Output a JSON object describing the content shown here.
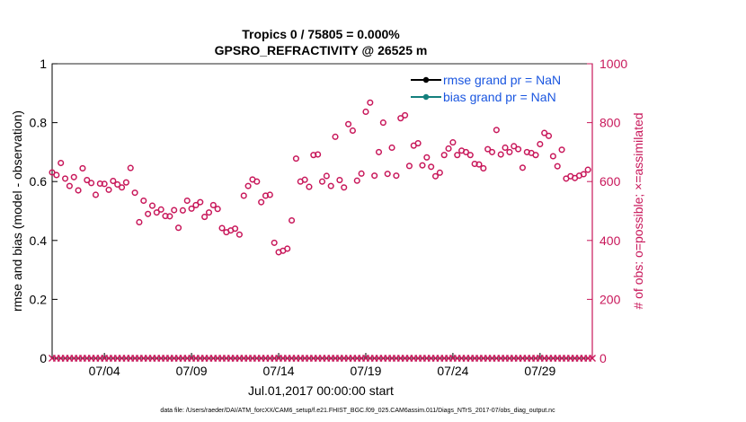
{
  "colors": {
    "left_axis": "#000000",
    "right_axis": "#c8175a",
    "rmse": "#000000",
    "bias": "#14807d",
    "legend_text": "#1a56e0"
  },
  "chart_data": {
    "type": "scatter",
    "title": [
      "Tropics 0 / 75805 = 0.000%",
      "GPSRO_REFRACTIVITY @ 26525 m"
    ],
    "xlabel": "Jul.01,2017 00:00:00 start",
    "ylabel_left": "rmse and bias (model - observation)",
    "ylabel_right": "# of obs: o=possible; ×=assimilated",
    "ylim_left": [
      0,
      1
    ],
    "ylim_right": [
      0,
      1000
    ],
    "yticks_left": [
      "0",
      "0.2",
      "0.4",
      "0.6",
      "0.8",
      "1"
    ],
    "yticks_right": [
      "0",
      "200",
      "400",
      "600",
      "800",
      "1000"
    ],
    "xlim_days": [
      0,
      31
    ],
    "xticks": [
      {
        "day": 3,
        "label": "07/04"
      },
      {
        "day": 8,
        "label": "07/09"
      },
      {
        "day": 13,
        "label": "07/14"
      },
      {
        "day": 18,
        "label": "07/19"
      },
      {
        "day": 23,
        "label": "07/24"
      },
      {
        "day": 28,
        "label": "07/29"
      }
    ],
    "legend": [
      {
        "label": "rmse grand pr = NaN",
        "series": "rmse"
      },
      {
        "label": "bias grand pr = NaN",
        "series": "bias"
      }
    ],
    "possible_obs_step_days": 0.25,
    "possible_obs": [
      631,
      622,
      663,
      610,
      585,
      615,
      570,
      645,
      605,
      595,
      555,
      593,
      592,
      572,
      602,
      590,
      580,
      597,
      646,
      562,
      462,
      535,
      490,
      518,
      495,
      505,
      483,
      482,
      503,
      443,
      502,
      535,
      508,
      520,
      530,
      480,
      495,
      520,
      507,
      442,
      428,
      434,
      440,
      420,
      552,
      585,
      607,
      600,
      530,
      552,
      555,
      392,
      360,
      365,
      372,
      468,
      678,
      600,
      606,
      582,
      690,
      692,
      600,
      619,
      585,
      752,
      605,
      580,
      795,
      773,
      603,
      627,
      837,
      868,
      620,
      700,
      800,
      626,
      715,
      620,
      815,
      825,
      653,
      722,
      730,
      655,
      682,
      650,
      618,
      630,
      690,
      712,
      733,
      690,
      705,
      700,
      690,
      660,
      658,
      645,
      710,
      700,
      775,
      692,
      715,
      700,
      720,
      710,
      647,
      700,
      697,
      690,
      727,
      765,
      755,
      686,
      652,
      708,
      610,
      618,
      612,
      620,
      625,
      640
    ],
    "assimilated_obs_count": 125,
    "assimilated_obs_value": 0,
    "footer": "data file: /Users/raeder/DAI/ATM_forcXX/CAM6_setup/f.e21.FHIST_BGC.f09_025.CAM6assim.011/Diags_NTrS_2017-07/obs_diag_output.nc"
  }
}
